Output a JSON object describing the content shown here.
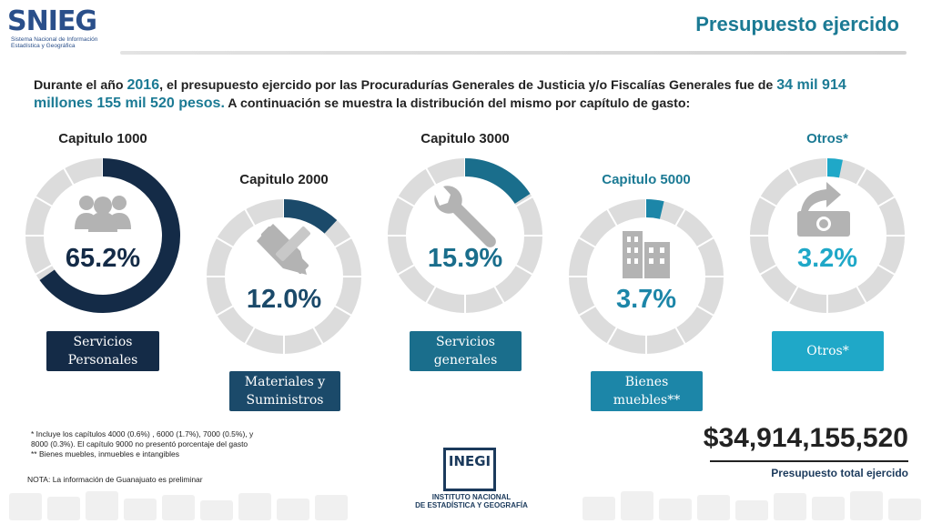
{
  "header": {
    "logo_text": "SNIEG",
    "logo_sub": "Sistema Nacional de Información Estadística y Geográfica",
    "title": "Presupuesto ejercido"
  },
  "intro": {
    "p1": "Durante el año ",
    "year": "2016",
    "p2": ", el presupuesto ejercido por las Procuradurías Generales de Justicia y/o Fiscalías Generales fue de ",
    "amount": "34 mil 914 millones 155 mil 520 pesos.",
    "p3": " A continuación se muestra la distribución del mismo por capítulo de gasto:"
  },
  "chart_data": {
    "type": "pie",
    "unit": "%",
    "categories": [
      "Capitulo 1000",
      "Capitulo 2000",
      "Capitulo 3000",
      "Capitulo 5000",
      "Otros*"
    ],
    "values": [
      65.2,
      12.0,
      15.9,
      3.7,
      3.2
    ],
    "value_labels": [
      "65.2%",
      "12.0%",
      "15.9%",
      "3.7%",
      "3.2%"
    ],
    "descriptions": [
      [
        "Servicios",
        "Personales"
      ],
      [
        "Materiales y",
        "Suministros"
      ],
      [
        "Servicios",
        "generales"
      ],
      [
        "Bienes",
        "muebles**"
      ],
      [
        "Otros*"
      ]
    ],
    "colors": [
      "#142b47",
      "#1b4a6a",
      "#1a6e8c",
      "#1c86a8",
      "#1fa8c8"
    ],
    "icons": [
      "people-icon",
      "pencil-ruler-icon",
      "wrench-icon",
      "building-icon",
      "money-icon"
    ]
  },
  "footnotes": {
    "f1": "* Incluye los capítulos 4000 (0.6%) , 6000 (1.7%), 7000 (0.5%), y 8000 (0.3%). El capítulo 9000 no presentó porcentaje del gasto",
    "f2": "** Bienes muebles, inmuebles e intangibles",
    "nota": "NOTA: La información de Guanajuato es preliminar"
  },
  "total": {
    "value": "$34,914,155,520",
    "label": "Presupuesto total ejercido"
  },
  "inegi": {
    "word": "INEGI",
    "line1": "INSTITUTO NACIONAL",
    "line2": "DE ESTADÍSTICA Y GEOGRAFÍA"
  }
}
